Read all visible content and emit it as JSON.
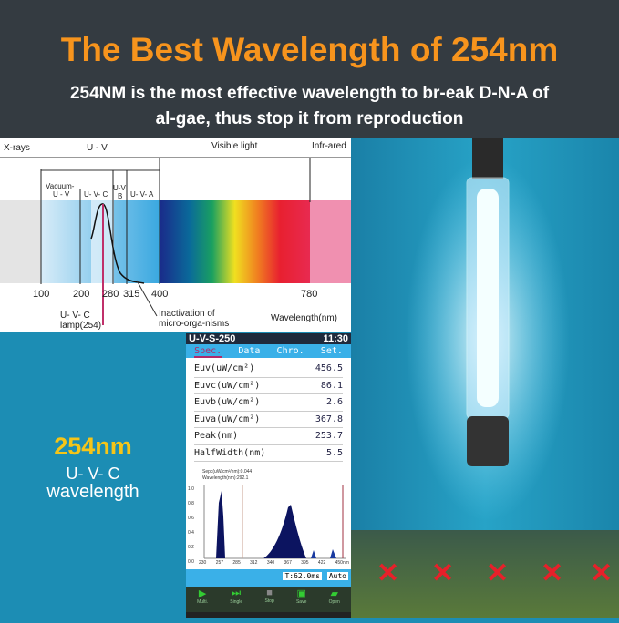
{
  "header": {
    "title": "The Best Wavelength of 254nm",
    "subtitle_line1": "254NM is the most effective wavelength to br-eak D-N-A of",
    "subtitle_line2": "al-gae, thus stop it from reproduction"
  },
  "spectrum": {
    "bands": [
      "X-rays",
      "U - V",
      "Visible light",
      "Infr-ared"
    ],
    "sub_bands": [
      "Vacuum-",
      "U - V",
      "U- V- C",
      "U-V",
      "B",
      "U- V- A"
    ],
    "ticks": [
      "100",
      "200",
      "280",
      "315",
      "400",
      "780"
    ],
    "lamp_label1": "U- V- C",
    "lamp_label2": "lamp(254)",
    "inact1": "Inactivation of",
    "inact2": "micro-orga-nisms",
    "axis_label": "Wavelength(nm)"
  },
  "side": {
    "big": "254nm",
    "line1": "U- V- C",
    "line2": "wavelength",
    "accent": "#f5c518"
  },
  "device": {
    "model": "U-V-S-250",
    "time": "11:30",
    "tabs": [
      "Spec.",
      "Data",
      "Chro.",
      "Set."
    ],
    "rows": [
      [
        "Euv(uW/cm²)",
        "456.5"
      ],
      [
        "Euvc(uW/cm²)",
        "86.1"
      ],
      [
        "Euvb(uW/cm²)",
        "2.6"
      ],
      [
        "Euva(uW/cm²)",
        "367.8"
      ],
      [
        "Peak(nm)",
        "253.7"
      ],
      [
        "HalfWidth(nm)",
        "5.5"
      ]
    ],
    "graph_info1": "Sepc(uW/cm²/nm):0.044",
    "graph_info2": "Wavelength(nm):292.1",
    "yticks": [
      "1.0",
      "0.8",
      "0.6",
      "0.4",
      "0.2",
      "0.0"
    ],
    "xticks": [
      "230",
      "257",
      "285",
      "312",
      "340",
      "367",
      "395",
      "422",
      "450nm"
    ],
    "exposure": "T:62.0ms",
    "mode": "Auto",
    "buttons": [
      "Multi.",
      "Single",
      "Stop",
      "Save",
      "Open"
    ]
  }
}
